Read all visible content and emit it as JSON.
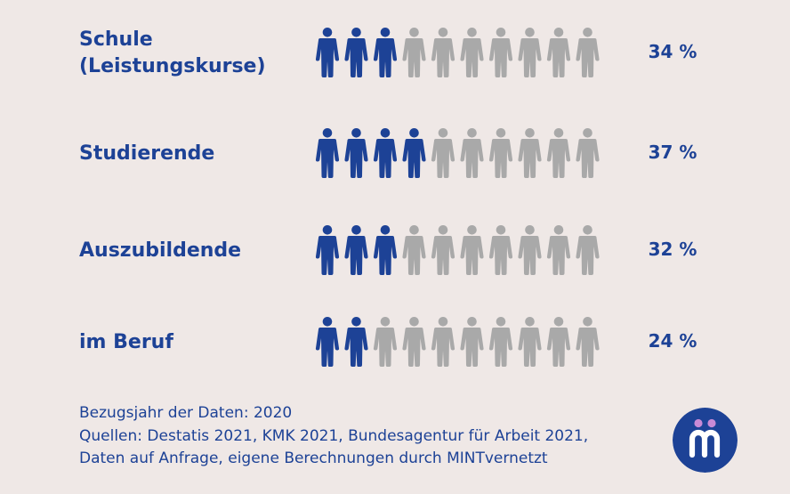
{
  "chart_data": {
    "type": "pictogram",
    "unit_icon": "person-icon",
    "icons_per_row": 10,
    "categories": [
      {
        "label_lines": [
          "Schule",
          "(Leistungskurse)"
        ],
        "value": 34,
        "value_label": "34 %",
        "filled_icons": 3
      },
      {
        "label_lines": [
          "Studierende"
        ],
        "value": 37,
        "value_label": "37 %",
        "filled_icons": 4
      },
      {
        "label_lines": [
          "Auszubildende"
        ],
        "value": 32,
        "value_label": "32 %",
        "filled_icons": 3
      },
      {
        "label_lines": [
          "im Beruf"
        ],
        "value": 24,
        "value_label": "24 %",
        "filled_icons": 2
      }
    ],
    "colors": {
      "filled": "#1d4296",
      "empty": "#a9a9a9",
      "text": "#1d4296"
    }
  },
  "footer": {
    "year_line": "Bezugsjahr der Daten: 2020",
    "sources_line1": "Quellen: Destatis 2021, KMK 2021, Bundesagentur für Arbeit 2021,",
    "sources_line2": "Daten auf Anfrage, eigene Berechnungen durch MINTvernetzt"
  },
  "logo": {
    "icon": "mintvernetzt-logo-icon",
    "letter": "m",
    "bg_color": "#1d4296",
    "dot_color": "#c98ad6"
  }
}
